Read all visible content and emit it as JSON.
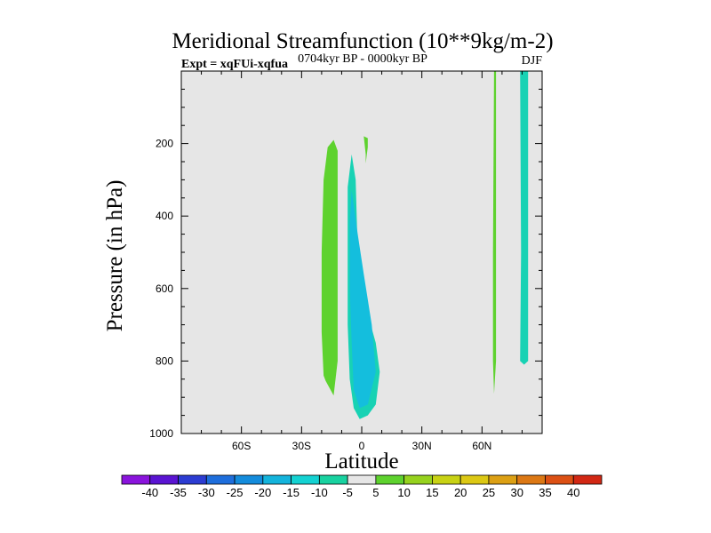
{
  "chart_data": {
    "type": "contour",
    "title": "Meridional Streamfunction (10**9kg/m-2)",
    "subtitle_left": "Expt = xqFUi-xqfua",
    "subtitle_center": "0704kyr BP - 0000kyr BP",
    "subtitle_right": "DJF",
    "xlabel": "Latitude",
    "ylabel": "Pressure (in hPa)",
    "xlim": [
      -90,
      90
    ],
    "ylim": [
      1000,
      0
    ],
    "x_ticks": [
      {
        "value": -60,
        "label": "60S"
      },
      {
        "value": -30,
        "label": "30S"
      },
      {
        "value": 0,
        "label": "0"
      },
      {
        "value": 30,
        "label": "30N"
      },
      {
        "value": 60,
        "label": "60N"
      }
    ],
    "y_ticks": [
      {
        "value": 200,
        "label": "200"
      },
      {
        "value": 400,
        "label": "400"
      },
      {
        "value": 600,
        "label": "600"
      },
      {
        "value": 800,
        "label": "800"
      },
      {
        "value": 1000,
        "label": "1000"
      }
    ],
    "background_color": "#e6e6e6",
    "regions": [
      {
        "name": "positive-cell-southern-subtropics",
        "level": "5 to 10",
        "color": "#5ed22e",
        "outline": [
          [
            -18,
            855
          ],
          [
            -14,
            895
          ],
          [
            -12,
            800
          ],
          [
            -12,
            500
          ],
          [
            -12,
            300
          ],
          [
            -12,
            220
          ],
          [
            -14,
            190
          ],
          [
            -17,
            210
          ],
          [
            -19,
            300
          ],
          [
            -20,
            500
          ],
          [
            -20,
            720
          ],
          [
            -19,
            840
          ]
        ]
      },
      {
        "name": "positive-cell-upper-equator",
        "level": "5 to 10",
        "color": "#5ed22e",
        "outline": [
          [
            1,
            180
          ],
          [
            2,
            230
          ],
          [
            2,
            255
          ],
          [
            3,
            210
          ],
          [
            3,
            185
          ]
        ]
      },
      {
        "name": "negative-cell-equator",
        "level": "-10 to -5",
        "color": "#18d2b4",
        "outline": [
          [
            -5,
            230
          ],
          [
            -3,
            300
          ],
          [
            -2,
            500
          ],
          [
            2,
            650
          ],
          [
            7,
            750
          ],
          [
            9,
            830
          ],
          [
            7,
            920
          ],
          [
            3,
            950
          ],
          [
            -1,
            960
          ],
          [
            -4,
            930
          ],
          [
            -6,
            850
          ],
          [
            -7,
            700
          ],
          [
            -7,
            500
          ],
          [
            -7,
            320
          ]
        ]
      },
      {
        "name": "negative-cell-equator-inner",
        "level": "-15 to -10",
        "color": "#14bedd",
        "outline": [
          [
            -5,
            330
          ],
          [
            -2,
            450
          ],
          [
            1,
            560
          ],
          [
            5,
            700
          ],
          [
            7,
            830
          ],
          [
            3,
            920
          ],
          [
            -1,
            930
          ],
          [
            -4,
            880
          ],
          [
            -5,
            750
          ],
          [
            -6,
            600
          ],
          [
            -6,
            420
          ]
        ]
      },
      {
        "name": "positive-strip-high-latitude",
        "level": "5 to 10",
        "color": "#5ed22e",
        "outline": [
          [
            66,
            0
          ],
          [
            67,
            0
          ],
          [
            67,
            500
          ],
          [
            67,
            800
          ],
          [
            66,
            890
          ],
          [
            65.5,
            800
          ],
          [
            65.5,
            500
          ]
        ]
      },
      {
        "name": "negative-strip-polar",
        "level": "-10 to -5",
        "color": "#18d2b4",
        "outline": [
          [
            79,
            0
          ],
          [
            83,
            0
          ],
          [
            83,
            800
          ],
          [
            81,
            810
          ],
          [
            79,
            800
          ],
          [
            79.5,
            500
          ]
        ]
      }
    ],
    "colorbar": {
      "labels": [
        "-40",
        "-35",
        "-30",
        "-25",
        "-20",
        "-15",
        "-10",
        "-5",
        "5",
        "10",
        "15",
        "20",
        "25",
        "30",
        "35",
        "40"
      ],
      "colors": [
        "#8a14dc",
        "#5a14d2",
        "#2c3cd2",
        "#1e6edc",
        "#148cdc",
        "#14b4dc",
        "#14d2d2",
        "#18d2a0",
        "#e6e6e6",
        "#5ed22e",
        "#96d21e",
        "#c8d214",
        "#dcc814",
        "#dca014",
        "#dc7814",
        "#dc5014",
        "#d22814"
      ]
    }
  }
}
